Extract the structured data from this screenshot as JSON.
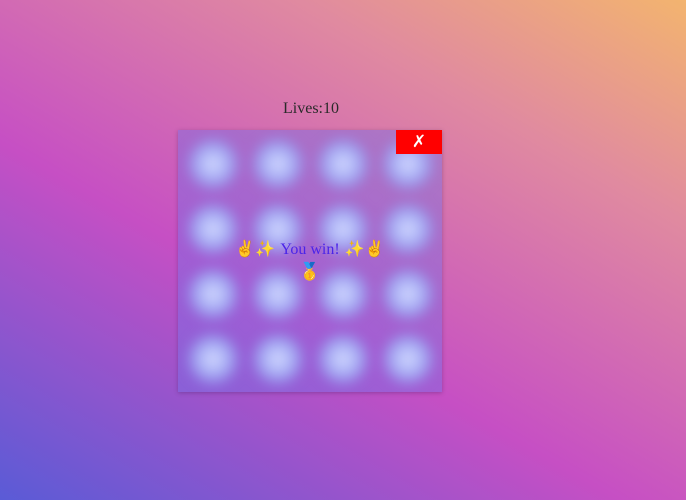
{
  "game": {
    "lives_label": "Lives:10",
    "close_label": "✗",
    "message": {
      "emoji_left": "✌️✨",
      "text": "You win!",
      "emoji_right": "✨✌️",
      "medal": "🥇"
    },
    "grid": {
      "rows": 4,
      "cols": 4
    },
    "colors": {
      "close_button": "#ff0000",
      "win_text": "#4b24e8",
      "tile": "#a8b0f5"
    }
  }
}
